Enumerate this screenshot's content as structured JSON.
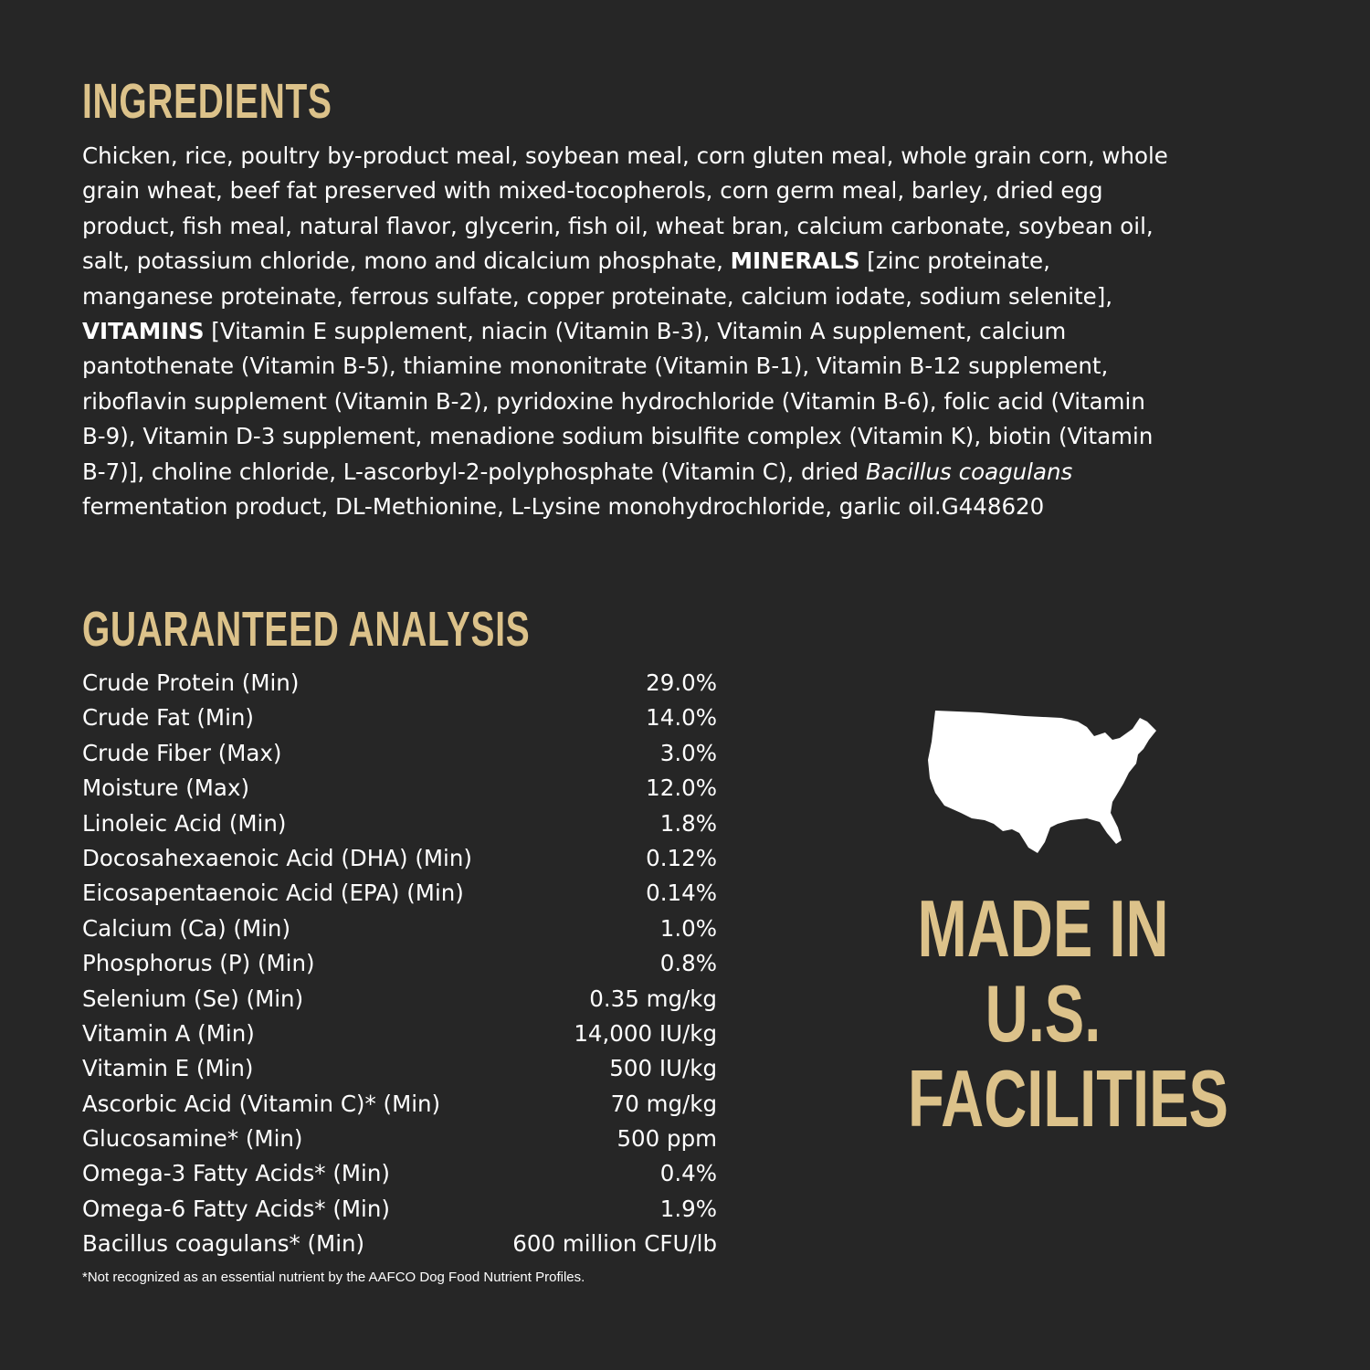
{
  "ingredients": {
    "title": "INGREDIENTS",
    "lines": [
      [
        {
          "t": "Chicken, rice, poultry by-product meal, soybean meal, corn gluten meal, whole grain corn, whole"
        }
      ],
      [
        {
          "t": "grain wheat, beef fat preserved with mixed-tocopherols, corn germ meal, barley, dried egg"
        }
      ],
      [
        {
          "t": "product, fish meal, natural flavor, glycerin, fish oil, wheat bran, calcium carbonate, soybean oil,"
        }
      ],
      [
        {
          "t": "salt, potassium chloride, mono and dicalcium phosphate, "
        },
        {
          "t": "MINERALS",
          "s": "b"
        },
        {
          "t": " [zinc proteinate,"
        }
      ],
      [
        {
          "t": "manganese proteinate, ferrous sulfate, copper proteinate, calcium iodate, sodium selenite],"
        }
      ],
      [
        {
          "t": "VITAMINS",
          "s": "b"
        },
        {
          "t": " [Vitamin E supplement, niacin (Vitamin B-3), Vitamin A supplement, calcium"
        }
      ],
      [
        {
          "t": "pantothenate (Vitamin B-5), thiamine mononitrate (Vitamin B-1), Vitamin B-12 supplement,"
        }
      ],
      [
        {
          "t": "riboflavin supplement (Vitamin B-2), pyridoxine hydrochloride (Vitamin B-6), folic acid (Vitamin"
        }
      ],
      [
        {
          "t": "B-9), Vitamin D-3 supplement, menadione sodium bisulfite complex (Vitamin K), biotin (Vitamin"
        }
      ],
      [
        {
          "t": "B-7)], choline chloride, L-ascorbyl-2-polyphosphate (Vitamin C), dried "
        },
        {
          "t": "Bacillus coagulans",
          "s": "i"
        }
      ],
      [
        {
          "t": "fermentation product, DL-Methionine, L-Lysine monohydrochloride, garlic oil.G448620"
        }
      ]
    ]
  },
  "analysis": {
    "title": "GUARANTEED ANALYSIS",
    "rows": [
      {
        "label": "Crude Protein (Min)",
        "value": "29.0%"
      },
      {
        "label": "Crude Fat (Min)",
        "value": "14.0%"
      },
      {
        "label": "Crude Fiber (Max)",
        "value": "3.0%"
      },
      {
        "label": "Moisture (Max)",
        "value": "12.0%"
      },
      {
        "label": "Linoleic Acid (Min)",
        "value": "1.8%"
      },
      {
        "label": "Docosahexaenoic Acid (DHA) (Min)",
        "value": "0.12%"
      },
      {
        "label": "Eicosapentaenoic Acid (EPA) (Min)",
        "value": "0.14%"
      },
      {
        "label": "Calcium (Ca) (Min)",
        "value": "1.0%"
      },
      {
        "label": "Phosphorus (P) (Min)",
        "value": "0.8%"
      },
      {
        "label": "Selenium (Se) (Min)",
        "value": "0.35 mg/kg"
      },
      {
        "label": "Vitamin A (Min)",
        "value": "14,000 IU/kg"
      },
      {
        "label": "Vitamin E (Min)",
        "value": "500 IU/kg"
      },
      {
        "label": "Ascorbic Acid (Vitamin C)* (Min)",
        "value": "70 mg/kg"
      },
      {
        "label": "Glucosamine* (Min)",
        "value": "500 ppm"
      },
      {
        "label": "Omega-3 Fatty Acids* (Min)",
        "value": "0.4%"
      },
      {
        "label": "Omega-6 Fatty Acids* (Min)",
        "value": "1.9%"
      },
      {
        "label": "Bacillus coagulans* (Min)",
        "value": "600 million CFU/lb"
      }
    ],
    "footnote": "*Not recognized as an essential nutrient by the AAFCO Dog Food Nutrient Profiles."
  },
  "badge": {
    "icon": "usa-map-icon",
    "lines": [
      "MADE IN",
      "U.S.",
      "FACILITIES"
    ]
  },
  "colors": {
    "background": "#262626",
    "accent": "#dcc28a",
    "text": "#ffffff"
  }
}
